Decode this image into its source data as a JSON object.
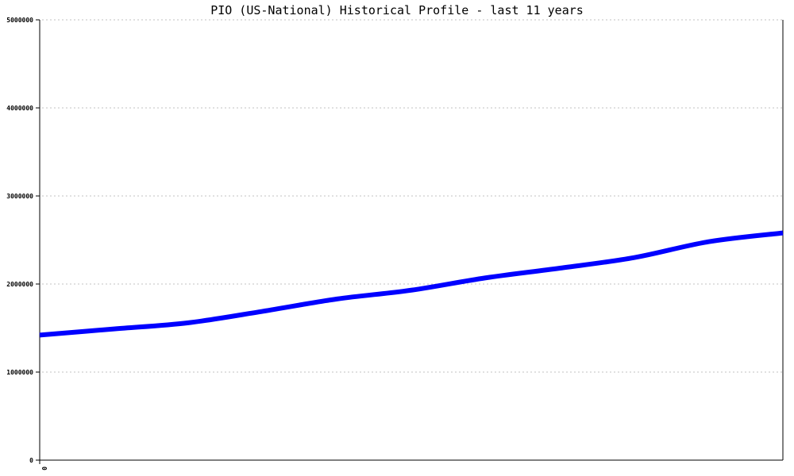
{
  "chart_data": {
    "type": "line",
    "title": "PIO (US-National) Historical Profile - last 11 years",
    "xlabel": "",
    "ylabel": "",
    "ylim": [
      0,
      5000000
    ],
    "yticks": [
      "0",
      "1000000",
      "2000000",
      "3000000",
      "4000000",
      "5000000"
    ],
    "xtick_labels": [
      "0"
    ],
    "grid": true,
    "series": [
      {
        "color": "#0000ff",
        "values": [
          1420000,
          1490000,
          1560000,
          1690000,
          1830000,
          1930000,
          2070000,
          2180000,
          2300000,
          2480000,
          2580000
        ]
      }
    ]
  }
}
